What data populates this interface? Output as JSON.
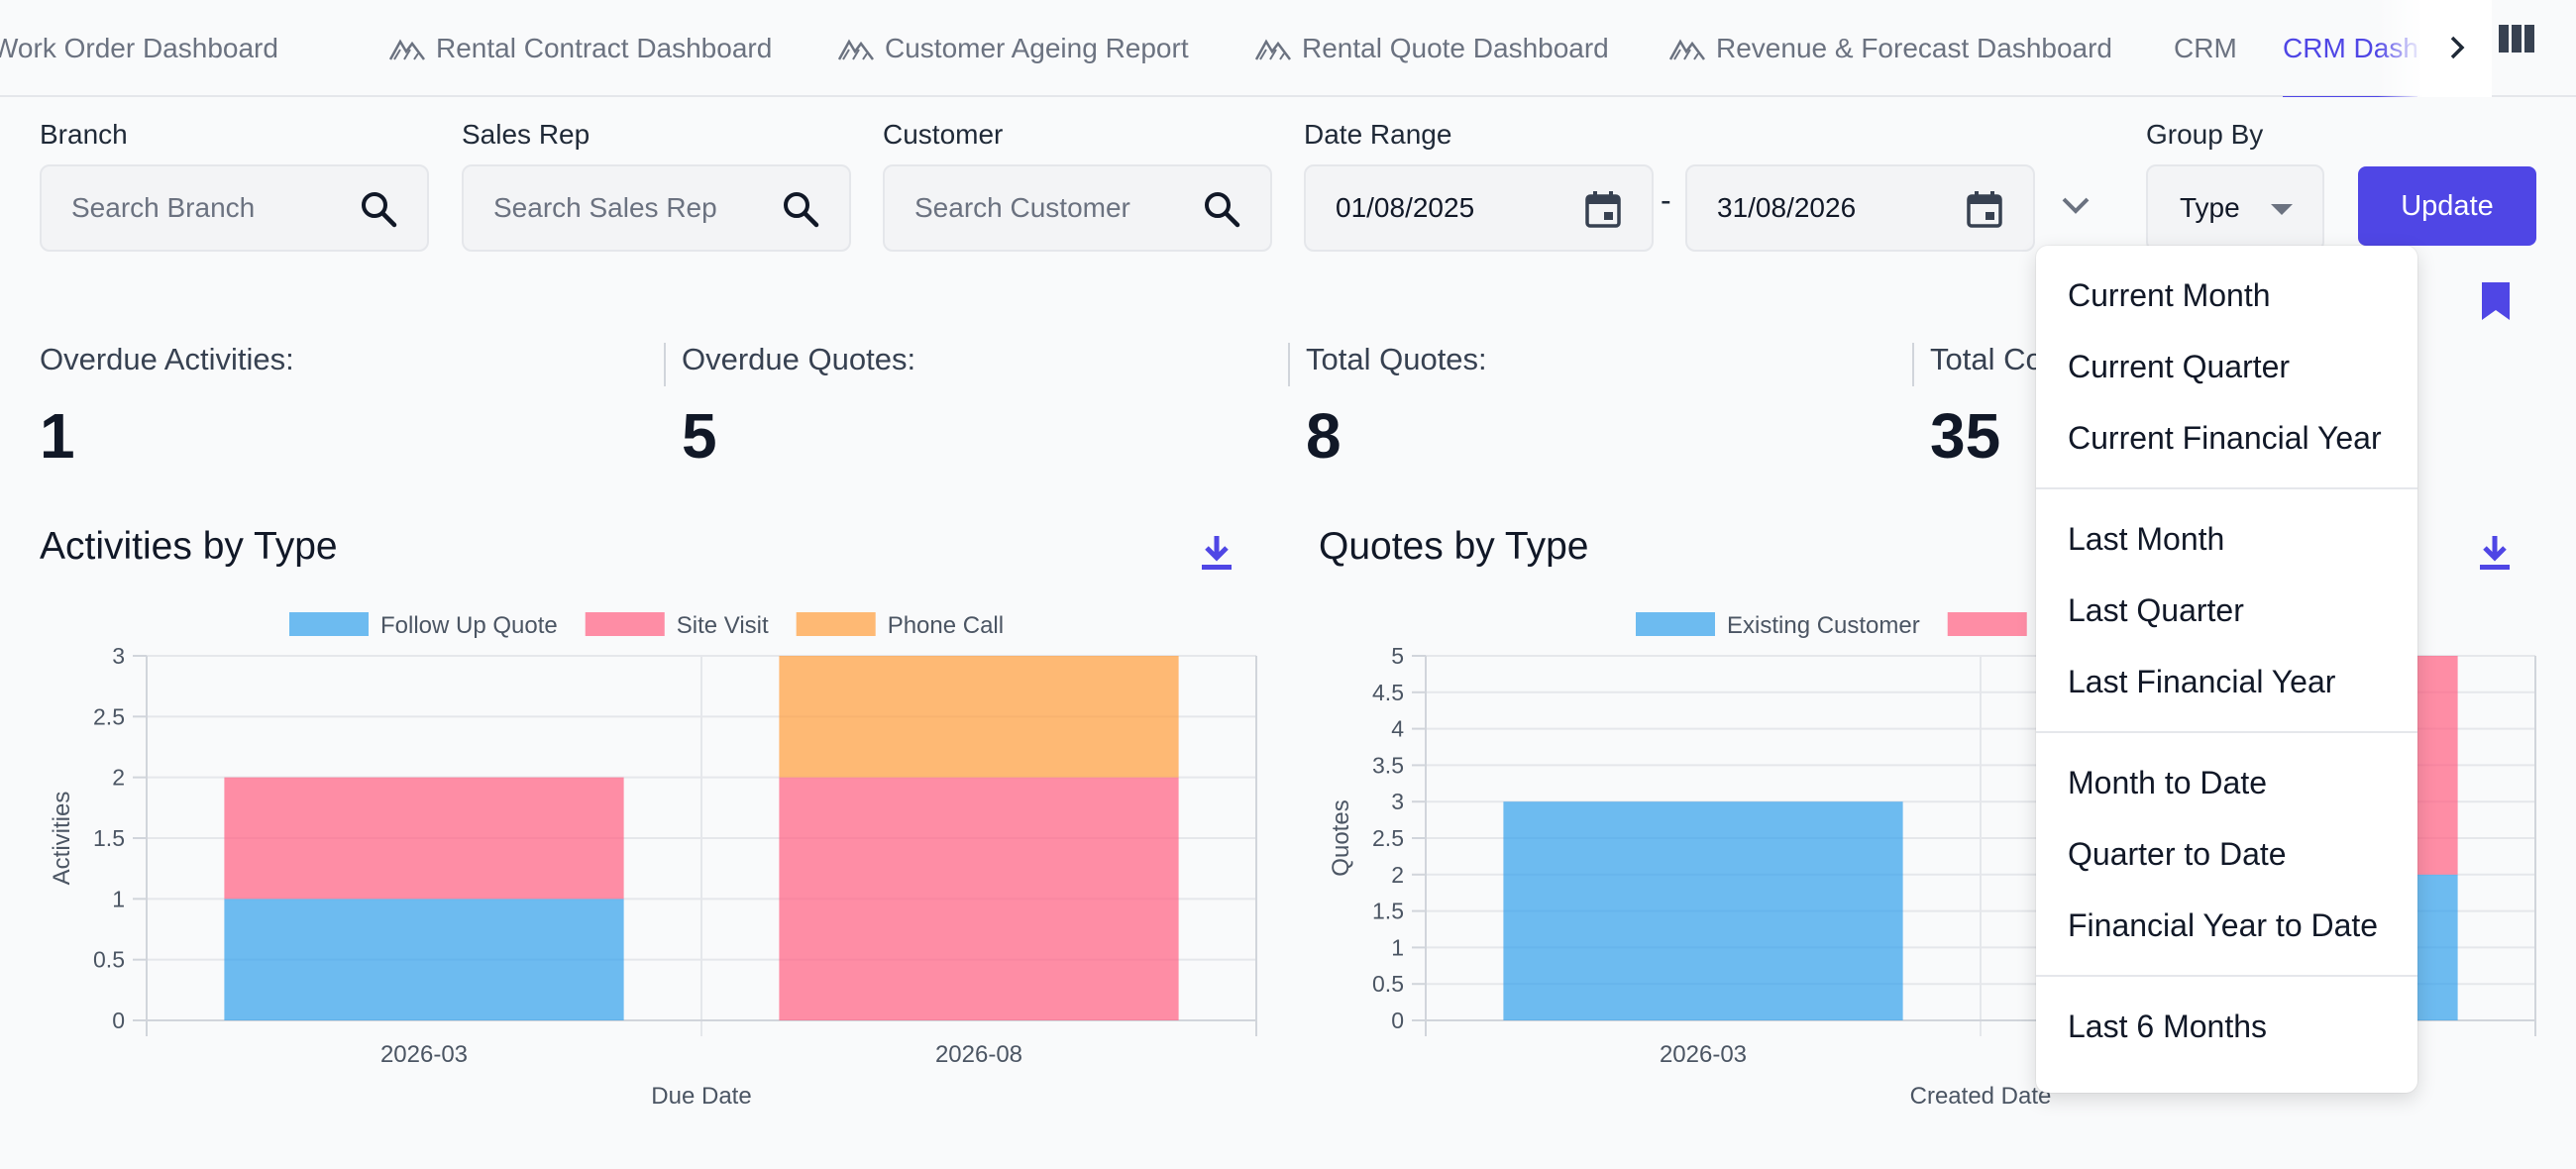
{
  "tabs": [
    {
      "label": "Work Order Dashboard",
      "icon": "dashboard-icon",
      "active": false
    },
    {
      "label": "Rental Contract Dashboard",
      "icon": "dashboard-icon",
      "active": false
    },
    {
      "label": "Customer Ageing Report",
      "icon": "dashboard-icon",
      "active": false
    },
    {
      "label": "Rental Quote Dashboard",
      "icon": "dashboard-icon",
      "active": false
    },
    {
      "label": "Revenue & Forecast Dashboard",
      "icon": "dashboard-icon",
      "active": false
    },
    {
      "label": "CRM",
      "icon": "",
      "active": false
    },
    {
      "label": "CRM Dashboard",
      "icon": "",
      "active": true
    }
  ],
  "filters": {
    "branch": {
      "label": "Branch",
      "placeholder": "Search Branch"
    },
    "sales_rep": {
      "label": "Sales Rep",
      "placeholder": "Search Sales Rep"
    },
    "customer": {
      "label": "Customer",
      "placeholder": "Search Customer"
    },
    "date_range": {
      "label": "Date Range",
      "start": "01/08/2025",
      "end": "31/08/2026",
      "separator": "-"
    },
    "group_by": {
      "label": "Group By",
      "value": "Type"
    },
    "update_label": "Update"
  },
  "stats": [
    {
      "label": "Overdue Activities:",
      "value": "1"
    },
    {
      "label": "Overdue Quotes:",
      "value": "5"
    },
    {
      "label": "Total Quotes:",
      "value": "8"
    },
    {
      "label": "Total Co",
      "value": "35"
    }
  ],
  "date_menu": {
    "groups": [
      [
        "Current Month",
        "Current Quarter",
        "Current Financial Year"
      ],
      [
        "Last Month",
        "Last Quarter",
        "Last Financial Year"
      ],
      [
        "Month to Date",
        "Quarter to Date",
        "Financial Year to Date"
      ],
      [
        "Last 6 Months"
      ]
    ]
  },
  "chart_data": [
    {
      "type": "bar",
      "stacked": true,
      "title": "Activities by Type",
      "xlabel": "Due Date",
      "ylabel": "Activities",
      "categories": [
        "2026-03",
        "2026-08"
      ],
      "series": [
        {
          "name": "Follow Up Quote",
          "color": "#36a2eb",
          "values": [
            1,
            0
          ]
        },
        {
          "name": "Site Visit",
          "color": "#ff6384",
          "values": [
            1,
            2
          ]
        },
        {
          "name": "Phone Call",
          "color": "#ff9f40",
          "values": [
            0,
            1
          ]
        }
      ],
      "ylim": [
        0,
        3
      ],
      "yticks": [
        "0",
        "0.5",
        "1",
        "1.5",
        "2",
        "2.5",
        "3"
      ],
      "legend": "top"
    },
    {
      "type": "bar",
      "stacked": true,
      "title": "Quotes by Type",
      "xlabel": "Created Date",
      "ylabel": "Quotes",
      "categories": [
        "2026-03",
        ""
      ],
      "series": [
        {
          "name": "Existing Customer",
          "color": "#36a2eb",
          "values": [
            3,
            2
          ]
        },
        {
          "name": "",
          "color": "#ff6384",
          "values": [
            0,
            3
          ]
        }
      ],
      "ylim": [
        0,
        5
      ],
      "yticks": [
        "0",
        "0.5",
        "1",
        "1.5",
        "2",
        "2.5",
        "3",
        "3.5",
        "4",
        "4.5",
        "5"
      ],
      "legend": "top"
    }
  ]
}
